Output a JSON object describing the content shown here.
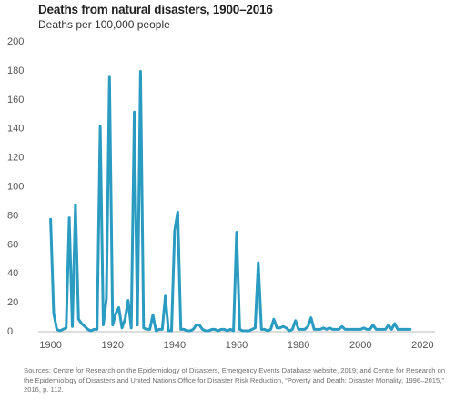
{
  "chart_data": {
    "type": "line",
    "title": "Deaths from natural disasters, 1900–2016",
    "subtitle": "Deaths per 100,000 people",
    "xlabel": "",
    "ylabel": "",
    "xlim": [
      1896,
      2024
    ],
    "ylim": [
      0,
      200
    ],
    "xticks": [
      1900,
      1920,
      1940,
      1960,
      1980,
      2000,
      2020
    ],
    "yticks": [
      0,
      20,
      40,
      60,
      80,
      100,
      120,
      140,
      160,
      180,
      200
    ],
    "grid": false,
    "legend": "none",
    "line_color": "#2a9bc1",
    "series": [
      {
        "name": "",
        "x": [
          1900,
          1901,
          1902,
          1903,
          1904,
          1905,
          1906,
          1907,
          1908,
          1909,
          1910,
          1911,
          1912,
          1913,
          1914,
          1915,
          1916,
          1917,
          1918,
          1919,
          1920,
          1921,
          1922,
          1923,
          1924,
          1925,
          1926,
          1927,
          1928,
          1929,
          1930,
          1931,
          1932,
          1933,
          1934,
          1935,
          1936,
          1937,
          1938,
          1939,
          1940,
          1941,
          1942,
          1943,
          1944,
          1945,
          1946,
          1947,
          1948,
          1949,
          1950,
          1951,
          1952,
          1953,
          1954,
          1955,
          1956,
          1957,
          1958,
          1959,
          1960,
          1961,
          1962,
          1963,
          1964,
          1965,
          1966,
          1967,
          1968,
          1969,
          1970,
          1971,
          1972,
          1973,
          1974,
          1975,
          1976,
          1977,
          1978,
          1979,
          1980,
          1981,
          1982,
          1983,
          1984,
          1985,
          1986,
          1987,
          1988,
          1989,
          1990,
          1991,
          1992,
          1993,
          1994,
          1995,
          1996,
          1997,
          1998,
          1999,
          2000,
          2001,
          2002,
          2003,
          2004,
          2005,
          2006,
          2007,
          2008,
          2009,
          2010,
          2011,
          2012,
          2013,
          2014,
          2015,
          2016
        ],
        "y": [
          77,
          12,
          1,
          0,
          1,
          2,
          78,
          3,
          87,
          8,
          5,
          3,
          1,
          0,
          1,
          1,
          141,
          4,
          22,
          175,
          4,
          12,
          16,
          2,
          8,
          21,
          2,
          151,
          4,
          179,
          2,
          1,
          1,
          11,
          0,
          1,
          1,
          24,
          0,
          0,
          69,
          82,
          1,
          1,
          0,
          0,
          1,
          4,
          4,
          1,
          0,
          0,
          1,
          1,
          0,
          1,
          1,
          0,
          1,
          0,
          68,
          1,
          0,
          0,
          0,
          1,
          2,
          47,
          1,
          1,
          0,
          1,
          8,
          2,
          2,
          3,
          2,
          0,
          1,
          7,
          1,
          1,
          1,
          3,
          9,
          1,
          1,
          1,
          2,
          1,
          2,
          1,
          1,
          1,
          3,
          1,
          1,
          1,
          1,
          1,
          1,
          2,
          1,
          1,
          4,
          1,
          1,
          1,
          1,
          4,
          1,
          5,
          1,
          1,
          1,
          1,
          1
        ]
      }
    ],
    "source": "Sources: Centre for Research on the Epidemiology of Disasters, Emergency Events Database website, 2019; and Centre for Research on the Epidemiology of Disasters and United Nations Office for Disaster Risk Reduction, “Poverty and Death: Disaster Mortality, 1996–2015,” 2016, p. 112."
  }
}
